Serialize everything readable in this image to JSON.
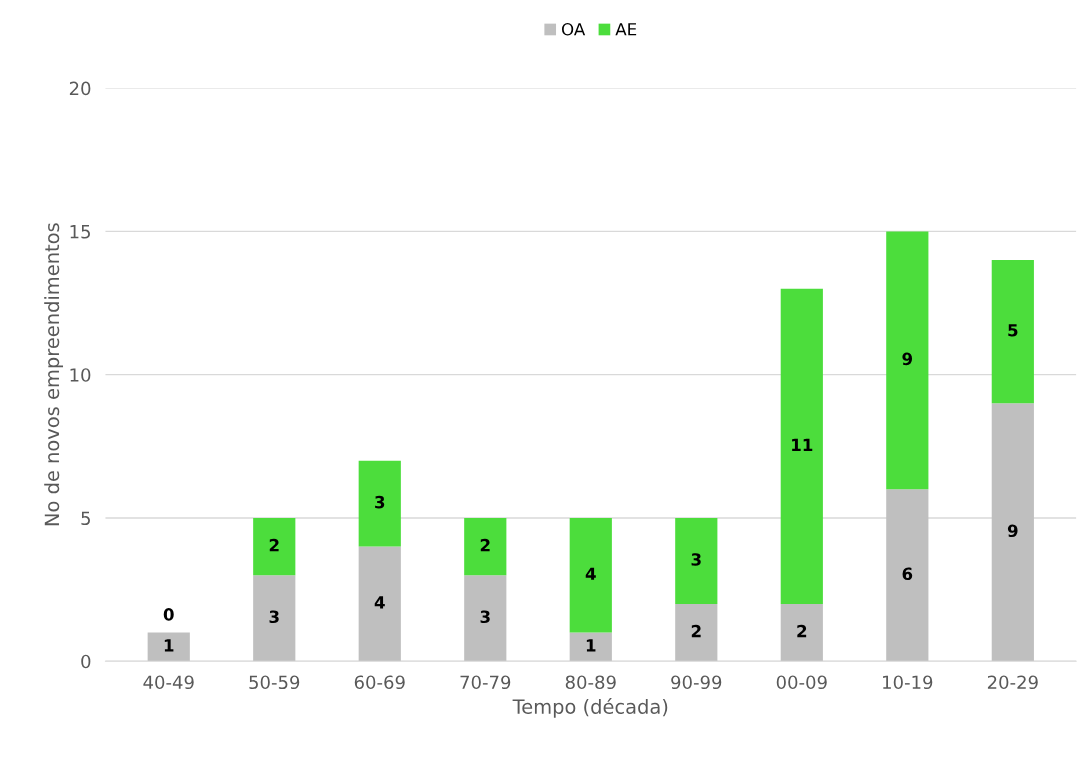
{
  "chart_data": {
    "type": "bar",
    "stacked": true,
    "xlabel": "Tempo (década)",
    "ylabel": "No de novos empreendimentos",
    "categories": [
      "40-49",
      "50-59",
      "60-69",
      "70-79",
      "80-89",
      "90-99",
      "00-09",
      "10-19",
      "20-29"
    ],
    "series": [
      {
        "name": "OA",
        "color": "#bfbfbf",
        "values": [
          1,
          3,
          4,
          3,
          1,
          2,
          2,
          6,
          9
        ]
      },
      {
        "name": "AE",
        "color": "#4cdd3c",
        "values": [
          0,
          2,
          3,
          2,
          4,
          3,
          11,
          9,
          5
        ]
      }
    ],
    "ylim": [
      0,
      20
    ],
    "yticks": [
      0,
      5,
      10,
      15,
      20
    ],
    "grid": "y",
    "legend": "top",
    "data_labels": true
  }
}
